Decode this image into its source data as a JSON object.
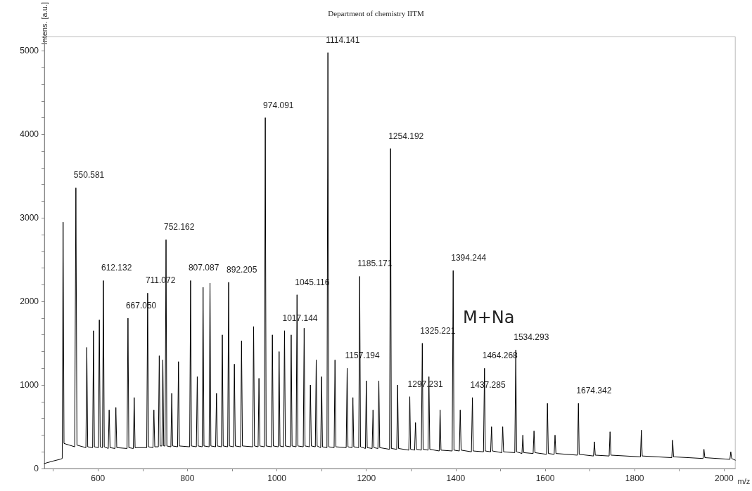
{
  "chart_data": {
    "type": "line",
    "title": "Department of chemistry IITM",
    "xlabel": "m/z",
    "ylabel": "Intens. [a.u.]",
    "color": "#000000",
    "x": [
      480,
      500,
      515,
      520,
      522,
      524,
      548,
      550.581,
      553,
      573,
      575,
      577,
      588,
      590,
      592,
      601,
      603,
      605,
      610,
      612.132,
      614,
      623,
      625,
      627,
      638,
      640,
      642,
      665,
      667.05,
      669,
      679,
      681,
      683,
      709,
      711.072,
      713,
      723,
      725,
      727,
      735,
      737,
      739,
      743,
      745,
      747,
      750,
      752.162,
      754,
      763,
      765,
      767,
      778,
      780,
      782,
      805,
      807.087,
      809,
      820,
      822,
      824,
      833,
      835,
      837,
      848.5,
      850.5,
      852.5,
      863,
      865,
      867,
      876,
      878,
      880,
      890,
      892.205,
      894,
      903,
      905,
      907,
      919,
      921,
      923,
      946,
      948,
      950,
      958,
      960,
      962,
      972,
      974.091,
      976,
      988,
      990,
      992,
      1003,
      1005,
      1007,
      1015,
      1017.144,
      1019,
      1030,
      1032,
      1034,
      1043,
      1045.116,
      1047,
      1059,
      1061,
      1063,
      1073,
      1075,
      1077,
      1086,
      1088,
      1090,
      1098,
      1100,
      1102,
      1112,
      1114.141,
      1116,
      1128,
      1130,
      1132,
      1155,
      1157.194,
      1159,
      1168,
      1170,
      1172,
      1183,
      1185.171,
      1187,
      1198,
      1200,
      1202,
      1213,
      1215,
      1217,
      1226,
      1228,
      1230,
      1252,
      1254.192,
      1256,
      1268,
      1270,
      1272,
      1295,
      1297.231,
      1299,
      1308,
      1310,
      1312,
      1323,
      1325.221,
      1327,
      1338,
      1340,
      1342,
      1363,
      1365,
      1367,
      1392,
      1394.244,
      1396,
      1408,
      1410,
      1412,
      1435,
      1437.285,
      1439,
      1462,
      1464.268,
      1466,
      1478,
      1480,
      1482,
      1503,
      1505,
      1507,
      1532,
      1534.293,
      1536,
      1548,
      1550,
      1552,
      1573,
      1575,
      1577,
      1603,
      1605,
      1607,
      1620,
      1622,
      1624,
      1672,
      1674.342,
      1676,
      1708,
      1710,
      1712,
      1743,
      1745,
      1747,
      1813,
      1815,
      1817,
      1883,
      1885,
      1887,
      1953,
      1955,
      1957,
      2013,
      2015,
      2017,
      2025
    ],
    "values": [
      60,
      90,
      110,
      120,
      2950,
      300,
      260,
      3360,
      280,
      250,
      1450,
      260,
      250,
      1650,
      260,
      250,
      1780,
      260,
      250,
      2250,
      260,
      240,
      700,
      250,
      240,
      730,
      250,
      240,
      1800,
      250,
      240,
      850,
      250,
      250,
      2100,
      260,
      250,
      700,
      260,
      260,
      1350,
      270,
      270,
      1300,
      270,
      270,
      2740,
      270,
      260,
      900,
      270,
      260,
      1280,
      270,
      260,
      2250,
      270,
      260,
      1100,
      270,
      260,
      2170,
      270,
      260,
      2220,
      270,
      260,
      900,
      270,
      260,
      1600,
      270,
      260,
      2230,
      270,
      260,
      1250,
      270,
      260,
      1530,
      270,
      260,
      1700,
      270,
      260,
      1080,
      270,
      260,
      4200,
      270,
      260,
      1600,
      270,
      260,
      1400,
      270,
      260,
      1650,
      270,
      260,
      1600,
      270,
      260,
      2080,
      270,
      260,
      1680,
      270,
      260,
      1000,
      270,
      260,
      1300,
      270,
      250,
      1100,
      260,
      250,
      4980,
      260,
      250,
      1300,
      260,
      250,
      1200,
      260,
      250,
      850,
      260,
      250,
      2300,
      260,
      240,
      1050,
      250,
      240,
      700,
      250,
      240,
      1050,
      250,
      230,
      3830,
      240,
      230,
      1000,
      240,
      220,
      860,
      230,
      220,
      550,
      230,
      220,
      1500,
      230,
      220,
      1100,
      230,
      210,
      700,
      220,
      210,
      2370,
      220,
      210,
      700,
      220,
      200,
      850,
      210,
      200,
      1200,
      210,
      200,
      500,
      210,
      190,
      500,
      200,
      190,
      1420,
      200,
      180,
      400,
      190,
      180,
      450,
      190,
      170,
      780,
      180,
      170,
      400,
      180,
      160,
      780,
      170,
      150,
      320,
      160,
      150,
      440,
      160,
      140,
      460,
      150,
      130,
      340,
      140,
      120,
      230,
      130,
      110,
      200,
      120,
      100
    ],
    "xlim": [
      480,
      2025
    ],
    "ylim": [
      0,
      5170
    ],
    "xticks": [
      {
        "value": 500,
        "label": null
      },
      600,
      {
        "value": 700,
        "label": null
      },
      800,
      {
        "value": 900,
        "label": null
      },
      1000,
      {
        "value": 1100,
        "label": null
      },
      1200,
      {
        "value": 1300,
        "label": null
      },
      1400,
      {
        "value": 1500,
        "label": null
      },
      1600,
      {
        "value": 1700,
        "label": null
      },
      1800,
      {
        "value": 1900,
        "label": null
      },
      2000
    ],
    "yticks": [
      0,
      {
        "value": 200,
        "label": null
      },
      {
        "value": 400,
        "label": null
      },
      {
        "value": 600,
        "label": null
      },
      {
        "value": 800,
        "label": null
      },
      1000,
      {
        "value": 1200,
        "label": null
      },
      {
        "value": 1400,
        "label": null
      },
      {
        "value": 1600,
        "label": null
      },
      {
        "value": 1800,
        "label": null
      },
      2000,
      {
        "value": 2200,
        "label": null
      },
      {
        "value": 2400,
        "label": null
      },
      {
        "value": 2600,
        "label": null
      },
      {
        "value": 2800,
        "label": null
      },
      3000,
      {
        "value": 3200,
        "label": null
      },
      {
        "value": 3400,
        "label": null
      },
      {
        "value": 3600,
        "label": null
      },
      {
        "value": 3800,
        "label": null
      },
      4000,
      {
        "value": 4200,
        "label": null
      },
      {
        "value": 4400,
        "label": null
      },
      {
        "value": 4600,
        "label": null
      },
      {
        "value": 4800,
        "label": null
      },
      5000
    ],
    "annotations": [
      {
        "text": "550.581",
        "x": 550.581,
        "y": 3360
      },
      {
        "text": "612.132",
        "x": 612.132,
        "y": 2250
      },
      {
        "text": "667.050",
        "x": 667.05,
        "y": 1800
      },
      {
        "text": "711.072",
        "x": 711.072,
        "y": 2100
      },
      {
        "text": "752.162",
        "x": 752.162,
        "y": 2740
      },
      {
        "text": "807.087",
        "x": 807.087,
        "y": 2250
      },
      {
        "text": "892.205",
        "x": 892.205,
        "y": 2230
      },
      {
        "text": "974.091",
        "x": 974.091,
        "y": 4200
      },
      {
        "text": "1017.144",
        "x": 1017.144,
        "y": 1650
      },
      {
        "text": "1045.116",
        "x": 1045.116,
        "y": 2080
      },
      {
        "text": "1114.141",
        "x": 1114.141,
        "y": 4980
      },
      {
        "text": "1157.194",
        "x": 1157.194,
        "y": 1200
      },
      {
        "text": "1185.171",
        "x": 1185.171,
        "y": 2300
      },
      {
        "text": "1254.192",
        "x": 1254.192,
        "y": 3830
      },
      {
        "text": "1297.231",
        "x": 1297.231,
        "y": 860
      },
      {
        "text": "1325.221",
        "x": 1325.221,
        "y": 1500
      },
      {
        "text": "1394.244",
        "x": 1394.244,
        "y": 2370
      },
      {
        "text": "1437.285",
        "x": 1437.285,
        "y": 850
      },
      {
        "text": "1464.268",
        "x": 1464.268,
        "y": 1200
      },
      {
        "text": "1534.293",
        "x": 1534.293,
        "y": 1420
      },
      {
        "text": "1674.342",
        "x": 1674.342,
        "y": 780
      },
      "M+Na"
    ]
  }
}
